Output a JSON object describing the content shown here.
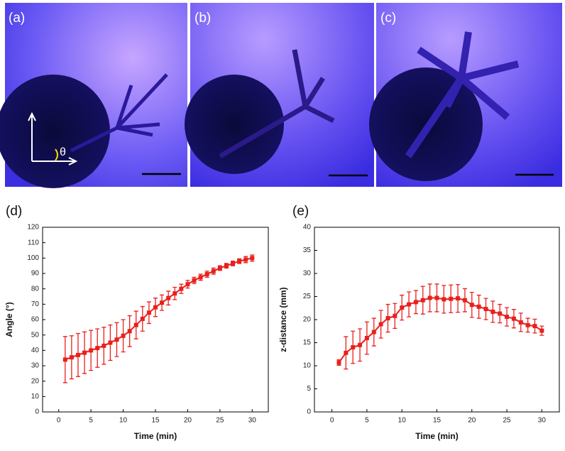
{
  "panels": [
    {
      "label": "(a)",
      "symbol": "θ"
    },
    {
      "label": "(b)"
    },
    {
      "label": "(c)"
    }
  ],
  "chart_data": [
    {
      "type": "line",
      "panel": "(d)",
      "x_label": "Time (min)",
      "y_label": "Angle (°)",
      "x": [
        1,
        2,
        3,
        4,
        5,
        6,
        7,
        8,
        9,
        10,
        11,
        12,
        13,
        14,
        15,
        16,
        17,
        18,
        19,
        20,
        21,
        22,
        23,
        24,
        25,
        26,
        27,
        28,
        29,
        30
      ],
      "series": [
        {
          "color": "#e8201c",
          "values": [
            34,
            35.5,
            37,
            38.5,
            40,
            41.5,
            43,
            45,
            47,
            49.5,
            52.5,
            56.5,
            60.5,
            64.5,
            68,
            71,
            74,
            77,
            80,
            83,
            85.5,
            87.5,
            89.5,
            91.5,
            93.5,
            95,
            96.5,
            98,
            99,
            100
          ],
          "errors": [
            15,
            14,
            14,
            13.5,
            13,
            12.5,
            12,
            11.5,
            11,
            10.5,
            10,
            9,
            8,
            7,
            6,
            5,
            4.5,
            4,
            3,
            2.5,
            2,
            2,
            2,
            2,
            1.5,
            1.5,
            1.5,
            1.5,
            2,
            2
          ]
        }
      ],
      "xlim": [
        -2.5,
        32.5
      ],
      "xticks": [
        0,
        5,
        10,
        15,
        20,
        25,
        30
      ],
      "ylim": [
        0,
        120
      ],
      "yticks": [
        0,
        10,
        20,
        30,
        40,
        50,
        60,
        70,
        80,
        90,
        100,
        110,
        120
      ]
    },
    {
      "type": "line",
      "panel": "(e)",
      "x_label": "Time (min)",
      "y_label": "z-distance (mm)",
      "x": [
        1,
        2,
        3,
        4,
        5,
        6,
        7,
        8,
        9,
        10,
        11,
        12,
        13,
        14,
        15,
        16,
        17,
        18,
        19,
        20,
        21,
        22,
        23,
        24,
        25,
        26,
        27,
        28,
        29,
        30
      ],
      "series": [
        {
          "color": "#e8201c",
          "values": [
            10.7,
            12.8,
            14,
            14.5,
            16,
            17.3,
            19,
            20.3,
            20.8,
            22.6,
            23.3,
            23.8,
            24.2,
            24.7,
            24.7,
            24.4,
            24.5,
            24.6,
            24.2,
            23.2,
            22.8,
            22.3,
            21.7,
            21.3,
            20.6,
            20.2,
            19.4,
            18.8,
            18.6,
            17.6
          ],
          "errors": [
            0.6,
            3.5,
            3.5,
            3.5,
            3.5,
            3,
            3,
            3,
            2.7,
            2.7,
            2.7,
            2.5,
            3,
            3,
            3,
            3,
            3,
            3,
            2.5,
            2.7,
            2.5,
            2.3,
            2.3,
            2,
            2,
            2,
            2,
            1.5,
            1.5,
            1
          ]
        }
      ],
      "xlim": [
        -2.5,
        32.5
      ],
      "xticks": [
        0,
        5,
        10,
        15,
        20,
        25,
        30
      ],
      "ylim": [
        0,
        40
      ],
      "yticks": [
        0,
        5,
        10,
        15,
        20,
        25,
        30,
        35,
        40
      ]
    }
  ]
}
